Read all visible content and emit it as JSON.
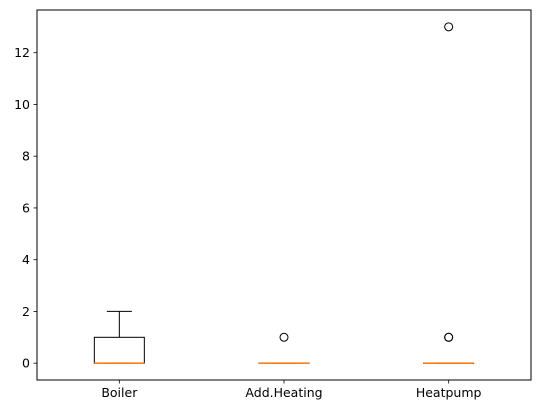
{
  "chart_data": {
    "type": "box",
    "categories": [
      "Boiler",
      "Add.Heating",
      "Heatpump"
    ],
    "boxes": [
      {
        "category": "Boiler",
        "whislo": 0,
        "q1": 0,
        "median": 0,
        "q3": 1,
        "whishi": 2,
        "fliers": []
      },
      {
        "category": "Add.Heating",
        "whislo": 0,
        "q1": 0,
        "median": 0,
        "q3": 0,
        "whishi": 0,
        "fliers": [
          1
        ]
      },
      {
        "category": "Heatpump",
        "whislo": 0,
        "q1": 0,
        "median": 0,
        "q3": 0,
        "whishi": 0,
        "fliers": [
          1,
          1,
          13
        ]
      }
    ],
    "ylim": [
      -0.65,
      13.65
    ],
    "yticks": [
      0,
      2,
      4,
      6,
      8,
      10,
      12
    ],
    "title": "",
    "xlabel": "",
    "ylabel": "",
    "grid": false,
    "colors": {
      "box": "#000000",
      "median": "#ff7f0e",
      "background": "#ffffff"
    }
  }
}
